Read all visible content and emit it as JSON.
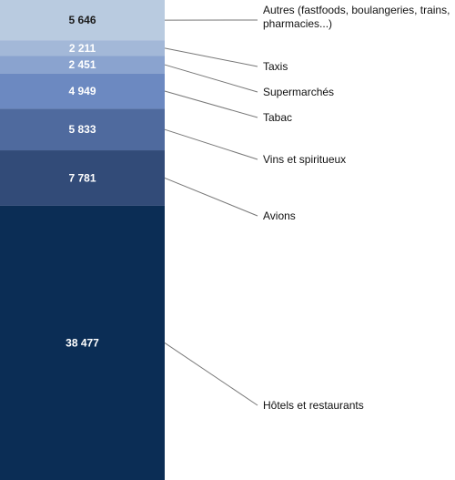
{
  "chart_data": {
    "type": "bar",
    "stacked": true,
    "title": "",
    "xlabel": "",
    "ylabel": "",
    "total": 67348,
    "segments": [
      {
        "label": "Autres (fastfoods, boulangeries, trains,",
        "label_line2": "pharmacies...)",
        "value": 5646,
        "value_label": "5 646",
        "color": "#b9cbe0",
        "text_color": "#1b1b1b"
      },
      {
        "label": "Taxis",
        "value": 2211,
        "value_label": "2 211",
        "color": "#a3b8d8",
        "text_color": "#ffffff"
      },
      {
        "label": "Supermarchés",
        "value": 2451,
        "value_label": "2 451",
        "color": "#8aa3cf",
        "text_color": "#ffffff"
      },
      {
        "label": "Tabac",
        "value": 4949,
        "value_label": "4 949",
        "color": "#6c89c1",
        "text_color": "#ffffff"
      },
      {
        "label": "Vins et spiritueux",
        "value": 5833,
        "value_label": "5 833",
        "color": "#4f6a9e",
        "text_color": "#ffffff"
      },
      {
        "label": "Avions",
        "value": 7781,
        "value_label": "7 781",
        "color": "#324b78",
        "text_color": "#ffffff"
      },
      {
        "label": "Hôtels et restaurants",
        "value": 38477,
        "value_label": "38 477",
        "color": "#0b2d55",
        "text_color": "#ffffff"
      }
    ]
  }
}
